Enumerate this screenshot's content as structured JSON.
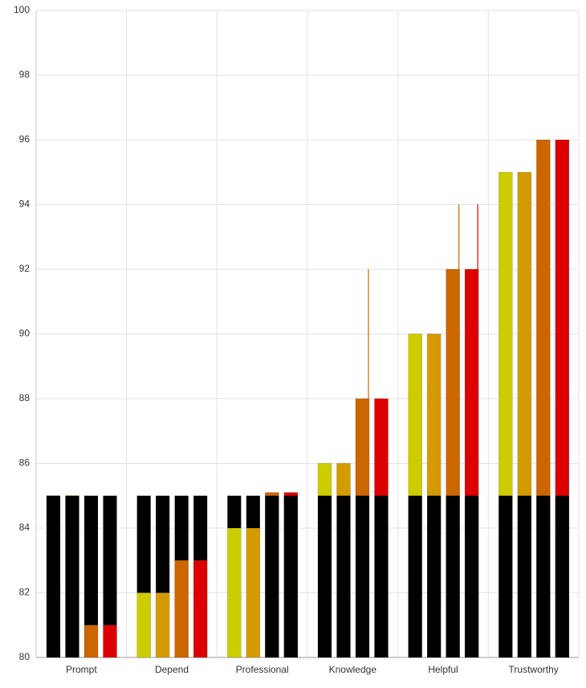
{
  "chart_data": {
    "type": "bar",
    "categories": [
      "Prompt",
      "Depend",
      "Professional",
      "Knowledge",
      "Helpful",
      "Trustworthy"
    ],
    "series": [
      {
        "color": "#cccc00",
        "values": [
          85,
          82,
          84,
          86,
          90,
          95
        ],
        "upper": [
          null,
          null,
          null,
          null,
          null,
          null
        ]
      },
      {
        "color": "#d49b00",
        "values": [
          85,
          82,
          84,
          86,
          90,
          95
        ],
        "upper": [
          null,
          null,
          null,
          null,
          null,
          null
        ]
      },
      {
        "color": "#cc6600",
        "values": [
          81,
          83,
          85.1,
          88,
          92,
          96
        ],
        "upper": [
          null,
          null,
          null,
          92,
          94,
          null
        ]
      },
      {
        "color": "#dd0000",
        "values": [
          81,
          83,
          85.1,
          88,
          92,
          96
        ],
        "upper": [
          null,
          null,
          null,
          null,
          94,
          null
        ]
      }
    ],
    "benchmark": {
      "color": "#000000",
      "values": [
        85,
        85,
        85,
        85,
        85,
        85
      ]
    },
    "ylim": [
      80,
      100
    ],
    "yticks": [
      80,
      82,
      84,
      86,
      88,
      90,
      92,
      94,
      96,
      98,
      100
    ],
    "grid": true
  }
}
